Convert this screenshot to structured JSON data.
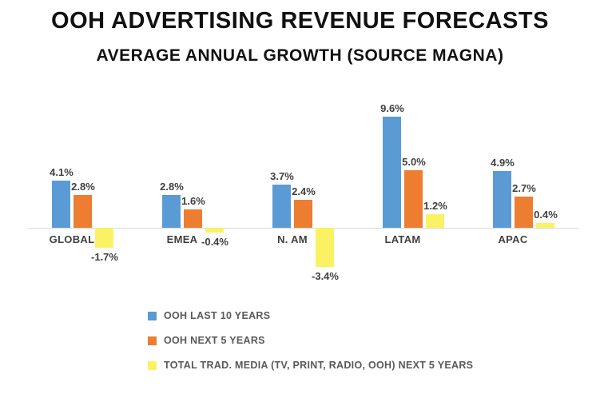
{
  "title": "OOH ADVERTISING REVENUE FORECASTS",
  "subtitle": "AVERAGE ANNUAL GROWTH (SOURCE MAGNA)",
  "colors": {
    "blue": "#5b9bd5",
    "orange": "#ed7d31",
    "yellow": "#faf263",
    "axis": "#d9d9d9",
    "label": "#404040"
  },
  "chart_data": {
    "type": "bar",
    "categories": [
      "GLOBAL",
      "EMEA",
      "N. AM",
      "LATAM",
      "APAC"
    ],
    "series": [
      {
        "name": "OOH LAST 10 YEARS",
        "color_key": "blue",
        "values": [
          4.1,
          2.8,
          3.7,
          9.6,
          4.9
        ],
        "labels": [
          "4.1%",
          "2.8%",
          "3.7%",
          "9.6%",
          "4.9%"
        ]
      },
      {
        "name": "OOH NEXT 5 YEARS",
        "color_key": "orange",
        "values": [
          2.8,
          1.6,
          2.4,
          5.0,
          2.7
        ],
        "labels": [
          "2.8%",
          "1.6%",
          "2.4%",
          "5.0%",
          "2.7%"
        ]
      },
      {
        "name": "TOTAL TRAD. MEDIA (TV, PRINT, RADIO, OOH) NEXT 5 YEARS",
        "color_key": "yellow",
        "values": [
          -1.7,
          -0.4,
          -3.4,
          1.2,
          0.4
        ],
        "labels": [
          "-1.7%",
          "-0.4%",
          "-3.4%",
          "1.2%",
          "0.4%"
        ]
      }
    ],
    "title": "OOH ADVERTISING REVENUE FORECASTS — AVERAGE ANNUAL GROWTH (SOURCE MAGNA)",
    "xlabel": "",
    "ylabel": "",
    "value_suffix": "%",
    "ylim": [
      -4,
      10
    ],
    "grid": false,
    "legend_position": "bottom-left"
  }
}
